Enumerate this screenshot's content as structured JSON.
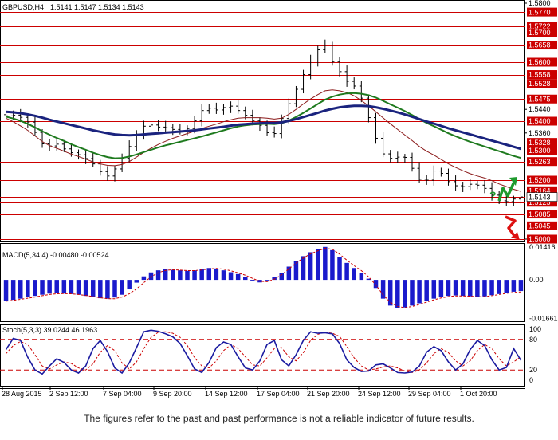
{
  "header": {
    "symbol": "GBPUSD,H4",
    "ohlc": "1.5141 1.5147 1.5134 1.5143"
  },
  "colors": {
    "level_red": "#cc0000",
    "ma_fast": "#8b1a1a",
    "ma_mid": "#1e7a1e",
    "ma_slow": "#1a237e",
    "macd_bar": "#1a1acc",
    "signal": "#cc0000",
    "stoch_main": "#1a1aa0",
    "arrow_up": "#1f9a2e",
    "arrow_down": "#dd1111"
  },
  "chart_data": [
    {
      "type": "line",
      "title": "GBPUSD,H4",
      "ylim": [
        1.5,
        1.58
      ],
      "price_scale_labels": [
        "1.5800",
        "1.5440",
        "1.5360",
        "1.5000"
      ],
      "levels": [
        1.577,
        1.5722,
        1.57,
        1.5658,
        1.56,
        1.5558,
        1.5528,
        1.5475,
        1.54,
        1.5328,
        1.53,
        1.5263,
        1.52,
        1.5164,
        1.5143,
        1.5125,
        1.5085,
        1.5045,
        1.5
      ],
      "level_labels": [
        "1.5770",
        "1.5722",
        "1.5700",
        "1.5658",
        "1.5600",
        "1.5558",
        "1.5528",
        "1.5475",
        "1.5400",
        "1.5328",
        "1.5300",
        "1.5263",
        "1.5200",
        "1.5164",
        "1.5125",
        "1.5085",
        "1.5045",
        "1.5000"
      ],
      "current_price_label": "1.5143",
      "x_labels": [
        "28 Aug 2015",
        "2 Sep 12:00",
        "7 Sep 04:00",
        "9 Sep 20:00",
        "14 Sep 12:00",
        "17 Sep 04:00",
        "21 Sep 20:00",
        "24 Sep 12:00",
        "29 Sep 04:00",
        "1 Oct 20:00"
      ],
      "close": [
        1.5418,
        1.542,
        1.5413,
        1.5397,
        1.5362,
        1.5323,
        1.5316,
        1.5322,
        1.5306,
        1.5293,
        1.5286,
        1.5273,
        1.5255,
        1.5229,
        1.5214,
        1.5238,
        1.5274,
        1.5314,
        1.5356,
        1.5383,
        1.5387,
        1.538,
        1.5378,
        1.5372,
        1.5366,
        1.5375,
        1.5401,
        1.5436,
        1.5444,
        1.5438,
        1.5446,
        1.5451,
        1.5436,
        1.542,
        1.5402,
        1.5386,
        1.5361,
        1.5358,
        1.5409,
        1.5459,
        1.5508,
        1.5558,
        1.5604,
        1.5642,
        1.5658,
        1.5602,
        1.5568,
        1.5535,
        1.5519,
        1.5478,
        1.5412,
        1.5342,
        1.5289,
        1.5274,
        1.5278,
        1.5277,
        1.524,
        1.5203,
        1.52,
        1.5231,
        1.5223,
        1.5195,
        1.5181,
        1.5178,
        1.5186,
        1.5183,
        1.5172,
        1.5149,
        1.513,
        1.5127,
        1.5136,
        1.5143
      ],
      "series": [
        {
          "name": "",
          "values": [
            1.541,
            1.5398,
            1.5384,
            1.5369,
            1.535,
            1.5331,
            1.5317,
            1.5308,
            1.5298,
            1.5288,
            1.528,
            1.5271,
            1.5262,
            1.5255,
            1.525,
            1.5249,
            1.5253,
            1.5263,
            1.5278,
            1.5294,
            1.5308,
            1.5321,
            1.5332,
            1.5342,
            1.535,
            1.5358,
            1.5366,
            1.5375,
            1.5383,
            1.539,
            1.5398,
            1.5405,
            1.541,
            1.5412,
            1.5412,
            1.5412,
            1.541,
            1.5407,
            1.541,
            1.5423,
            1.544,
            1.5458,
            1.5475,
            1.549,
            1.5503,
            1.5506,
            1.5503,
            1.5497,
            1.5486,
            1.547,
            1.5452,
            1.5432,
            1.5411,
            1.5391,
            1.5372,
            1.5353,
            1.5334,
            1.5314,
            1.5298,
            1.5285,
            1.527,
            1.5255,
            1.5243,
            1.5232,
            1.5222,
            1.5214,
            1.5207,
            1.5198,
            1.5187,
            1.5178,
            1.5169,
            1.5162
          ]
        },
        {
          "name": "",
          "values": [
            1.5415,
            1.5409,
            1.5401,
            1.5391,
            1.5379,
            1.5366,
            1.5354,
            1.5343,
            1.5333,
            1.5322,
            1.5312,
            1.5303,
            1.5293,
            1.5285,
            1.5278,
            1.5274,
            1.5275,
            1.528,
            1.5287,
            1.5295,
            1.5303,
            1.5311,
            1.5318,
            1.5324,
            1.533,
            1.5336,
            1.5342,
            1.5348,
            1.5355,
            1.5362,
            1.5369,
            1.5376,
            1.5382,
            1.5386,
            1.5389,
            1.539,
            1.5391,
            1.539,
            1.5393,
            1.5402,
            1.5414,
            1.5428,
            1.5443,
            1.5458,
            1.5473,
            1.5483,
            1.549,
            1.5494,
            1.5495,
            1.5493,
            1.5488,
            1.548,
            1.5469,
            1.5457,
            1.5446,
            1.5434,
            1.5421,
            1.5407,
            1.5394,
            1.5383,
            1.5371,
            1.5359,
            1.5349,
            1.5339,
            1.533,
            1.5322,
            1.5314,
            1.5306,
            1.5298,
            1.529,
            1.5282,
            1.5275
          ]
        },
        {
          "name": "",
          "values": [
            1.5432,
            1.543,
            1.5427,
            1.5423,
            1.5418,
            1.5412,
            1.5405,
            1.5399,
            1.5393,
            1.5387,
            1.5381,
            1.5375,
            1.5369,
            1.5364,
            1.5359,
            1.5355,
            1.5353,
            1.5352,
            1.5353,
            1.5355,
            1.5357,
            1.5359,
            1.5361,
            1.5363,
            1.5365,
            1.5367,
            1.5369,
            1.5372,
            1.5375,
            1.5378,
            1.5381,
            1.5385,
            1.5388,
            1.539,
            1.5392,
            1.5393,
            1.5394,
            1.5394,
            1.5396,
            1.5401,
            1.5407,
            1.5414,
            1.5421,
            1.5428,
            1.5436,
            1.5442,
            1.5447,
            1.545,
            1.5452,
            1.5452,
            1.5451,
            1.5447,
            1.5442,
            1.5436,
            1.543,
            1.5423,
            1.5415,
            1.5407,
            1.5399,
            1.5392,
            1.5384,
            1.5376,
            1.5369,
            1.5362,
            1.5355,
            1.5348,
            1.5341,
            1.5334,
            1.5327,
            1.532,
            1.5313,
            1.5306
          ]
        }
      ]
    },
    {
      "type": "bar",
      "title": "MACD(5,34,4) -0.00480 -0.00524",
      "ylim": [
        -0.0175,
        0.0155
      ],
      "scale_labels": [
        "0.01416",
        "0.00",
        "-0.01661"
      ],
      "values": [
        -0.0091,
        -0.0086,
        -0.0081,
        -0.0075,
        -0.0069,
        -0.0064,
        -0.0059,
        -0.0058,
        -0.0059,
        -0.0061,
        -0.0064,
        -0.0069,
        -0.0075,
        -0.0079,
        -0.0081,
        -0.0076,
        -0.0064,
        -0.0041,
        -0.0012,
        0.0015,
        0.0032,
        0.0041,
        0.0045,
        0.0043,
        0.0041,
        0.0039,
        0.0041,
        0.0045,
        0.0051,
        0.0049,
        0.0041,
        0.0033,
        0.0025,
        0.0012,
        -0.0004,
        -0.0011,
        -0.0003,
        0.0011,
        0.0031,
        0.0057,
        0.0081,
        0.0102,
        0.0119,
        0.0131,
        0.0142,
        0.0128,
        0.0099,
        0.0073,
        0.0051,
        0.0031,
        0.0005,
        -0.0035,
        -0.0081,
        -0.0111,
        -0.0122,
        -0.0119,
        -0.0111,
        -0.0101,
        -0.0091,
        -0.0081,
        -0.0075,
        -0.0069,
        -0.0067,
        -0.0069,
        -0.0071,
        -0.0074,
        -0.0071,
        -0.0066,
        -0.0061,
        -0.0056,
        -0.0051,
        -0.0048
      ],
      "signal": [
        -0.0092,
        -0.0088,
        -0.0084,
        -0.0079,
        -0.0074,
        -0.0068,
        -0.0063,
        -0.006,
        -0.0059,
        -0.006,
        -0.0063,
        -0.0067,
        -0.0072,
        -0.0077,
        -0.0081,
        -0.0081,
        -0.0074,
        -0.006,
        -0.0039,
        -0.0012,
        0.0013,
        0.0031,
        0.0041,
        0.0044,
        0.0042,
        0.004,
        0.004,
        0.0043,
        0.0047,
        0.0049,
        0.0046,
        0.0039,
        0.003,
        0.002,
        0.0006,
        -0.0006,
        -0.0008,
        0.0003,
        0.0022,
        0.0047,
        0.0072,
        0.0094,
        0.0112,
        0.0125,
        0.0136,
        0.0132,
        0.0111,
        0.0085,
        0.0061,
        0.004,
        0.0013,
        -0.0022,
        -0.0065,
        -0.0097,
        -0.0115,
        -0.012,
        -0.0115,
        -0.0106,
        -0.0096,
        -0.0086,
        -0.0078,
        -0.0072,
        -0.0069,
        -0.0069,
        -0.007,
        -0.0073,
        -0.0072,
        -0.0068,
        -0.0063,
        -0.0058,
        -0.0054,
        -0.0052
      ]
    },
    {
      "type": "line",
      "title": "Stoch(5,3,3) 39.0244 46.1963",
      "ylim": [
        0,
        100
      ],
      "scale_labels": [
        "100",
        "80",
        "20",
        "0"
      ],
      "levels": [
        80,
        20
      ],
      "series": [
        {
          "name": "",
          "values": [
            60,
            82,
            78,
            45,
            20,
            12,
            28,
            42,
            35,
            20,
            14,
            28,
            62,
            78,
            56,
            24,
            14,
            34,
            64,
            95,
            98,
            96,
            91,
            85,
            72,
            48,
            22,
            15,
            35,
            64,
            75,
            70,
            46,
            24,
            20,
            38,
            70,
            78,
            40,
            28,
            50,
            78,
            95,
            92,
            93,
            91,
            72,
            40,
            25,
            17,
            18,
            30,
            32,
            24,
            15,
            14,
            16,
            28,
            55,
            66,
            58,
            36,
            20,
            32,
            60,
            78,
            68,
            40,
            20,
            25,
            62,
            39
          ]
        },
        {
          "name": "",
          "values": [
            52,
            68,
            76,
            70,
            50,
            28,
            22,
            30,
            36,
            33,
            24,
            20,
            32,
            55,
            68,
            58,
            34,
            22,
            36,
            62,
            84,
            94,
            95,
            92,
            84,
            68,
            44,
            28,
            24,
            38,
            58,
            70,
            62,
            46,
            30,
            28,
            44,
            62,
            64,
            46,
            38,
            54,
            78,
            90,
            94,
            92,
            86,
            66,
            44,
            28,
            20,
            22,
            26,
            28,
            24,
            18,
            15,
            20,
            34,
            52,
            62,
            54,
            38,
            28,
            38,
            58,
            70,
            62,
            42,
            28,
            36,
            46
          ]
        }
      ]
    }
  ],
  "disclaimer": "The figures refer to the past and past performance is not a reliable indicator of future results."
}
